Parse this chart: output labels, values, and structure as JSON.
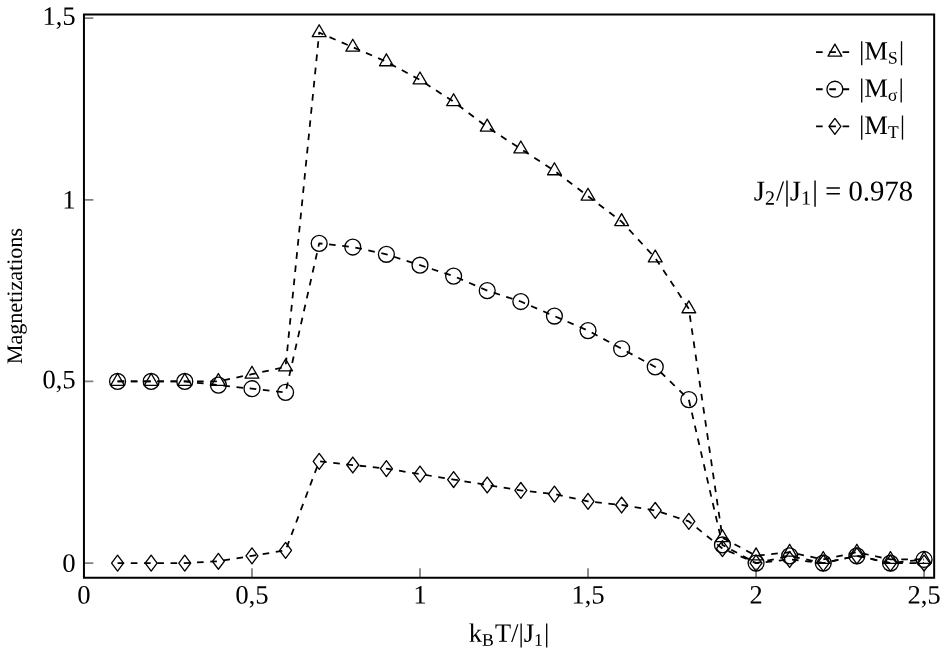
{
  "chart_data": {
    "type": "line",
    "xlabel": "k$_{B}$T/|J$_{1}$|",
    "ylabel": "Magnetizations",
    "x": [
      0.1,
      0.2,
      0.3,
      0.4,
      0.5,
      0.6,
      0.7,
      0.8,
      0.9,
      1.0,
      1.1,
      1.2,
      1.3,
      1.4,
      1.5,
      1.6,
      1.7,
      1.8,
      1.9,
      2.0,
      2.1,
      2.2,
      2.3,
      2.4,
      2.5
    ],
    "series": [
      {
        "name": "|M$_{S}$|",
        "color": "#000000",
        "marker": "triangle",
        "values": [
          0.5,
          0.5,
          0.5,
          0.5,
          0.52,
          0.54,
          1.46,
          1.42,
          1.38,
          1.33,
          1.27,
          1.2,
          1.14,
          1.08,
          1.01,
          0.94,
          0.84,
          0.7,
          0.07,
          0.02,
          0.03,
          0.01,
          0.03,
          0.01,
          0.01
        ]
      },
      {
        "name": "|M$_{σ}$|",
        "color": "#000000",
        "marker": "circle",
        "values": [
          0.5,
          0.5,
          0.5,
          0.49,
          0.48,
          0.47,
          0.88,
          0.87,
          0.85,
          0.82,
          0.79,
          0.75,
          0.72,
          0.68,
          0.64,
          0.59,
          0.54,
          0.45,
          0.05,
          0.0,
          0.02,
          0.0,
          0.02,
          0.0,
          0.01
        ]
      },
      {
        "name": "|M$_{T}$|",
        "color": "#000000",
        "marker": "diamond",
        "values": [
          0.0,
          0.0,
          0.0,
          0.005,
          0.02,
          0.035,
          0.28,
          0.27,
          0.26,
          0.245,
          0.23,
          0.215,
          0.2,
          0.19,
          0.17,
          0.16,
          0.145,
          0.115,
          0.04,
          0.0,
          0.01,
          0.0,
          0.02,
          0.0,
          0.0
        ]
      }
    ],
    "line_style": "dashed",
    "legend": "top right",
    "annotations": [
      "J$_{2}$/|J$_{1}$| = 0.978"
    ],
    "xlim": [
      0,
      2.53
    ],
    "ylim": [
      -0.04,
      1.51
    ],
    "xticks": [
      0,
      {
        "value": 0.5,
        "label": "0,5"
      },
      1,
      {
        "value": 1.5,
        "label": "1,5"
      },
      2,
      {
        "value": 2.5,
        "label": "2,5"
      }
    ],
    "yticks": [
      0,
      {
        "value": 0.5,
        "label": "0,5"
      },
      1,
      {
        "value": 1.5,
        "label": "1,5"
      }
    ]
  }
}
